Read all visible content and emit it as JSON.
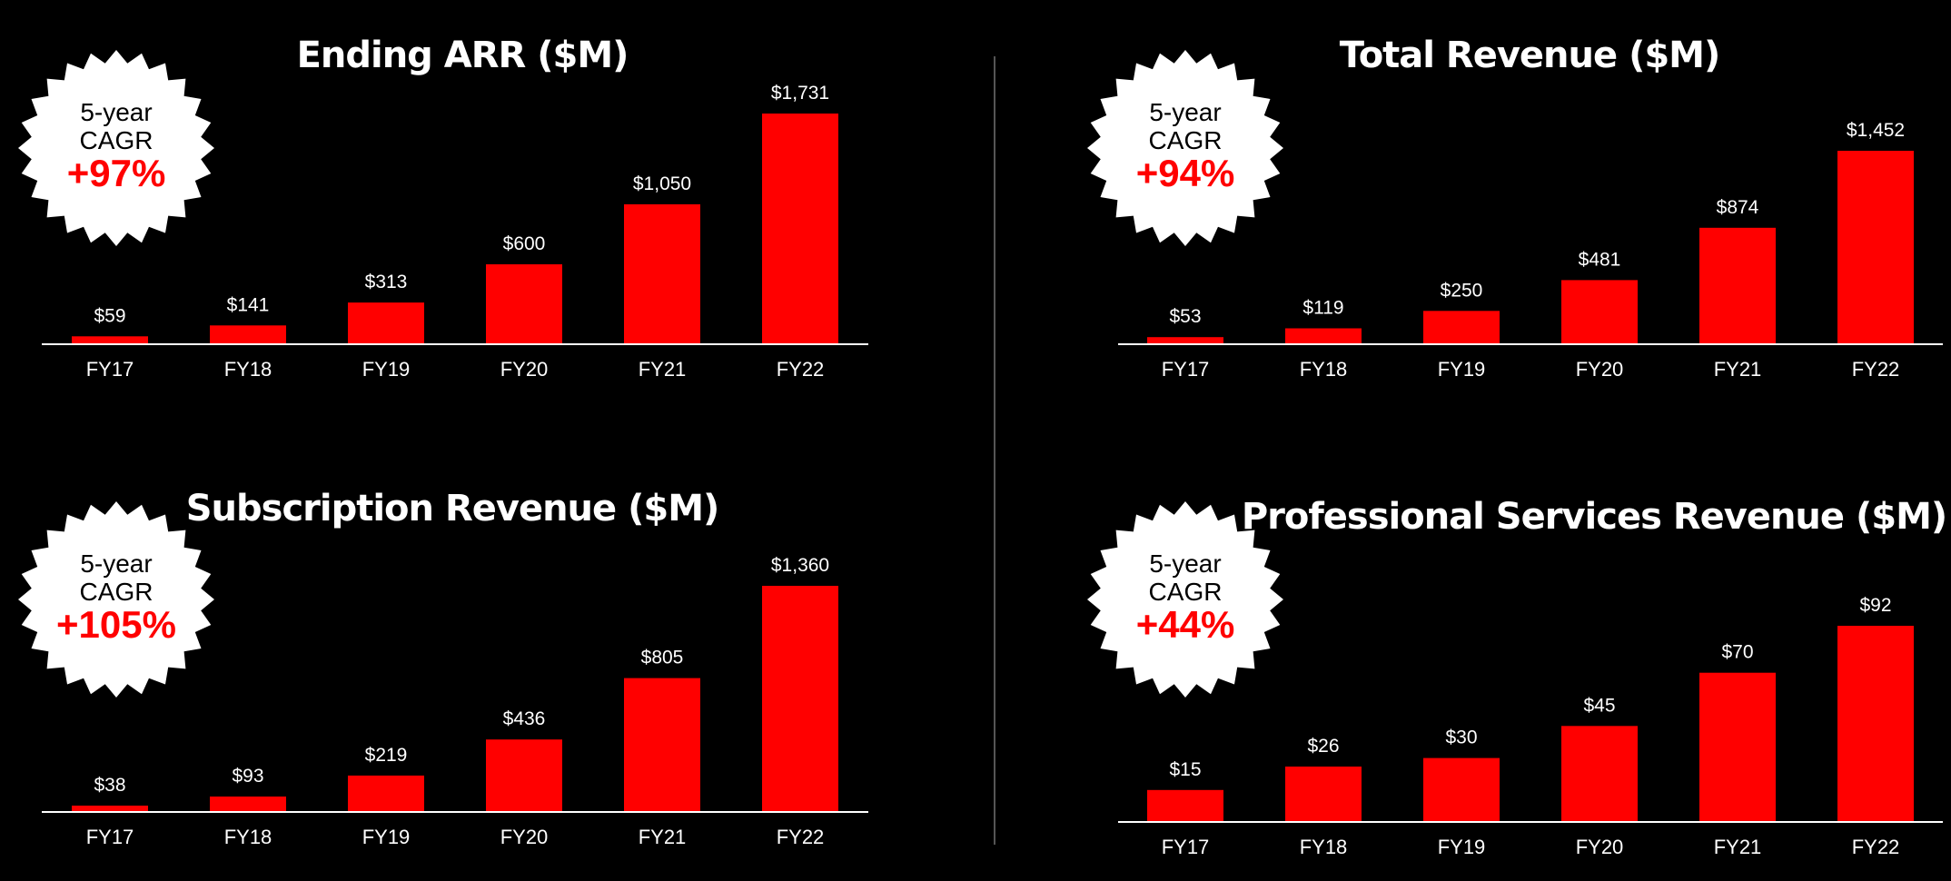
{
  "colors": {
    "background": "#000000",
    "bar": "#ff0000",
    "text": "#ffffff",
    "badge_fill": "#ffffff",
    "badge_text": "#000000",
    "badge_accent": "#ff0000",
    "divider": "#555555"
  },
  "chart_data": [
    {
      "type": "bar",
      "title": "Ending ARR ($M)",
      "categories": [
        "FY17",
        "FY18",
        "FY19",
        "FY20",
        "FY21",
        "FY22"
      ],
      "values": [
        59,
        141,
        313,
        600,
        1050,
        1731
      ],
      "value_labels": [
        "$59",
        "$141",
        "$313",
        "$600",
        "$1,050",
        "$1,731"
      ],
      "badge": {
        "line1": "5-year",
        "line2": "CAGR",
        "value": "+97%"
      },
      "ylim": [
        0,
        1731
      ]
    },
    {
      "type": "bar",
      "title": "Total Revenue ($M)",
      "categories": [
        "FY17",
        "FY18",
        "FY19",
        "FY20",
        "FY21",
        "FY22"
      ],
      "values": [
        53,
        119,
        250,
        481,
        874,
        1452
      ],
      "value_labels": [
        "$53",
        "$119",
        "$250",
        "$481",
        "$874",
        "$1,452"
      ],
      "badge": {
        "line1": "5-year",
        "line2": "CAGR",
        "value": "+94%"
      },
      "ylim": [
        0,
        1452
      ]
    },
    {
      "type": "bar",
      "title": "Subscription Revenue ($M)",
      "categories": [
        "FY17",
        "FY18",
        "FY19",
        "FY20",
        "FY21",
        "FY22"
      ],
      "values": [
        38,
        93,
        219,
        436,
        805,
        1360
      ],
      "value_labels": [
        "$38",
        "$93",
        "$219",
        "$436",
        "$805",
        "$1,360"
      ],
      "badge": {
        "line1": "5-year",
        "line2": "CAGR",
        "value": "+105%"
      },
      "ylim": [
        0,
        1360
      ]
    },
    {
      "type": "bar",
      "title": "Professional Services Revenue ($M)",
      "categories": [
        "FY17",
        "FY18",
        "FY19",
        "FY20",
        "FY21",
        "FY22"
      ],
      "values": [
        15,
        26,
        30,
        45,
        70,
        92
      ],
      "value_labels": [
        "$15",
        "$26",
        "$30",
        "$45",
        "$70",
        "$92"
      ],
      "badge": {
        "line1": "5-year",
        "line2": "CAGR",
        "value": "+44%"
      },
      "ylim": [
        0,
        92
      ]
    }
  ]
}
